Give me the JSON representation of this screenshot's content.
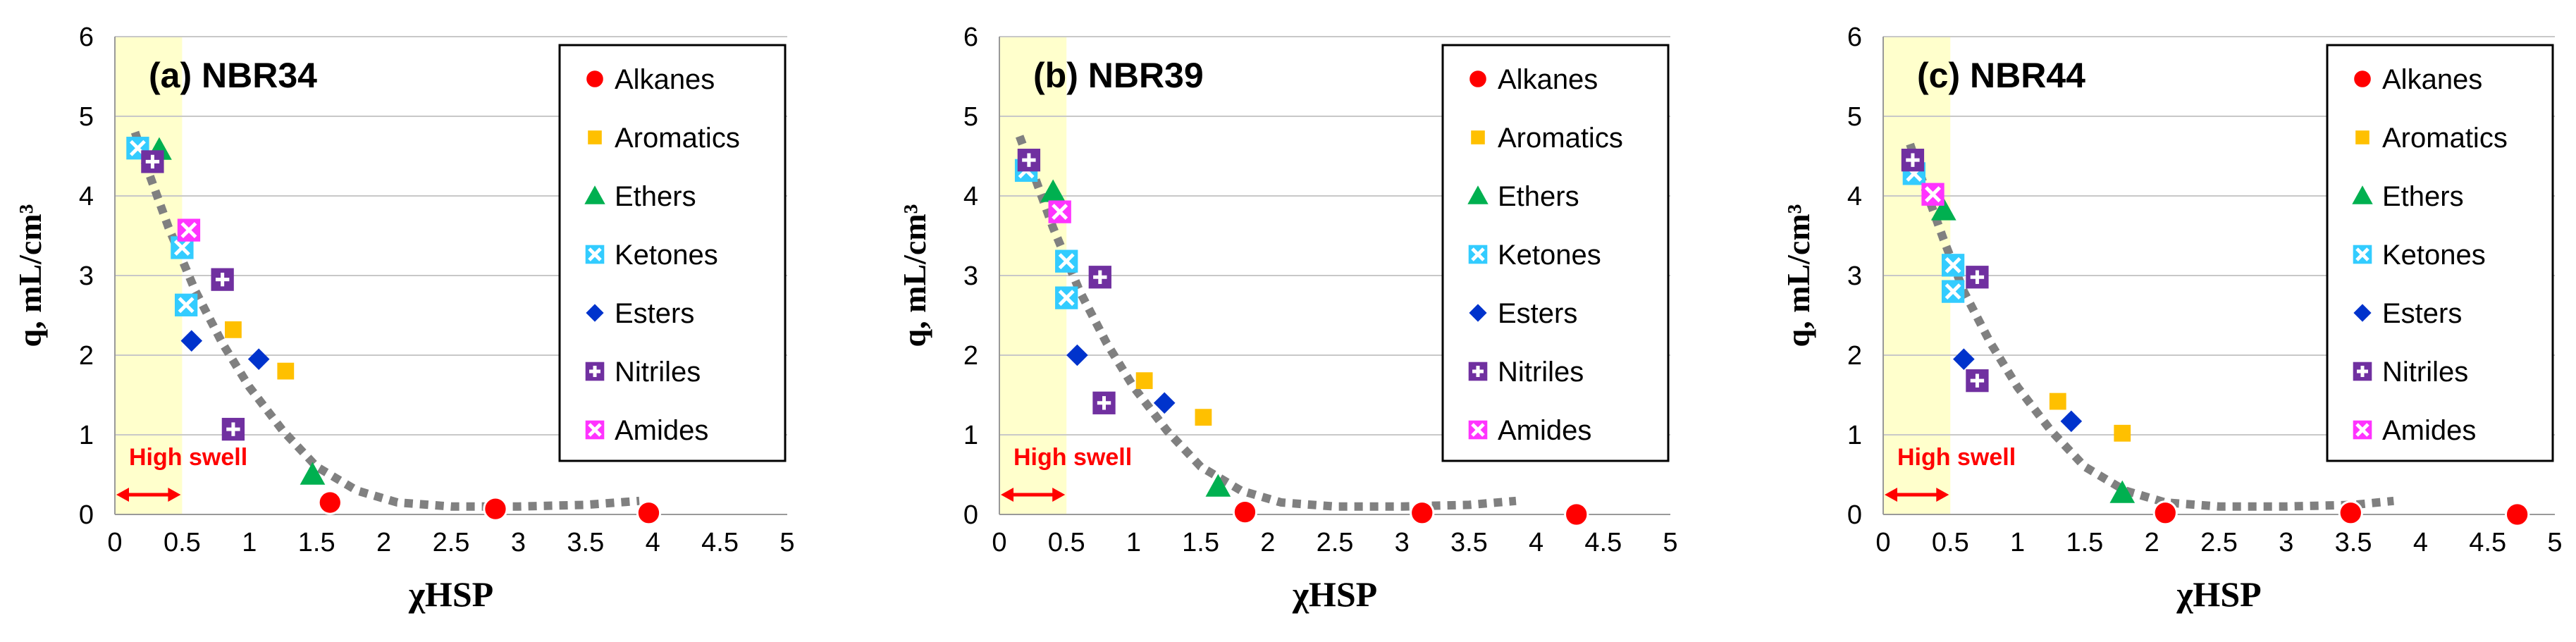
{
  "colors": {
    "Alkanes": "#ff0000",
    "Aromatics": "#ffc000",
    "Ethers": "#00b050",
    "Ketones": "#33ccff",
    "Esters": "#0033cc",
    "Nitriles": "#7030a0",
    "Amides": "#ff33ff",
    "highSwellBand": "#ffffcc",
    "highSwellText": "#ff0000",
    "trend": "#808080"
  },
  "chart_data": [
    {
      "type": "scatter",
      "title": "(a) NBR34",
      "xlabel": "χHSP",
      "ylabel": "q, mL/cm³",
      "xlim": [
        0,
        5
      ],
      "ylim": [
        0,
        6
      ],
      "xticks": [
        "0",
        "0.5",
        "1",
        "1.5",
        "2",
        "2.5",
        "3",
        "3.5",
        "4",
        "4.5",
        "5"
      ],
      "yticks": [
        "0",
        "1",
        "2",
        "3",
        "4",
        "5",
        "6"
      ],
      "grid": true,
      "legend_position": "top-right",
      "annotation": "High swell",
      "high_swell_limit": 0.5,
      "series": [
        {
          "name": "Alkanes",
          "x": [
            1.6,
            2.83,
            3.97
          ],
          "y": [
            0.15,
            0.07,
            0.02
          ]
        },
        {
          "name": "Aromatics",
          "x": [
            0.88,
            1.27
          ],
          "y": [
            2.32,
            1.8
          ]
        },
        {
          "name": "Ethers",
          "x": [
            0.33,
            1.47
          ],
          "y": [
            4.58,
            0.5
          ]
        },
        {
          "name": "Ketones",
          "x": [
            0.17,
            0.5,
            0.53
          ],
          "y": [
            4.6,
            3.35,
            2.63
          ]
        },
        {
          "name": "Esters",
          "x": [
            0.57,
            1.07
          ],
          "y": [
            2.18,
            1.95
          ]
        },
        {
          "name": "Nitriles",
          "x": [
            0.28,
            0.8,
            0.88
          ],
          "y": [
            4.43,
            2.95,
            1.07
          ]
        },
        {
          "name": "Amides",
          "x": [
            0.55
          ],
          "y": [
            3.57
          ]
        }
      ],
      "trend": {
        "x": [
          0.15,
          0.25,
          0.4,
          0.6,
          0.8,
          1,
          1.25,
          1.5,
          1.8,
          2.1,
          2.5,
          3,
          3.5,
          3.9
        ],
        "y": [
          4.8,
          4.3,
          3.6,
          2.8,
          2.15,
          1.6,
          1.05,
          0.6,
          0.3,
          0.15,
          0.1,
          0.1,
          0.12,
          0.17
        ]
      }
    },
    {
      "type": "scatter",
      "title": "(b) NBR39",
      "xlabel": "χHSP",
      "ylabel": "q, mL/cm³",
      "xlim": [
        0,
        5
      ],
      "ylim": [
        0,
        6
      ],
      "xticks": [
        "0",
        "0.5",
        "1",
        "1.5",
        "2",
        "2.5",
        "3",
        "3.5",
        "4",
        "4.5",
        "5"
      ],
      "yticks": [
        "0",
        "1",
        "2",
        "3",
        "4",
        "5",
        "6"
      ],
      "grid": true,
      "legend_position": "top-right",
      "annotation": "High swell",
      "high_swell_limit": 0.5,
      "series": [
        {
          "name": "Alkanes",
          "x": [
            1.83,
            3.15,
            4.3
          ],
          "y": [
            0.03,
            0.02,
            0.0
          ]
        },
        {
          "name": "Aromatics",
          "x": [
            1.08,
            1.52
          ],
          "y": [
            1.68,
            1.22
          ]
        },
        {
          "name": "Ethers",
          "x": [
            0.4,
            1.63
          ],
          "y": [
            4.05,
            0.35
          ]
        },
        {
          "name": "Ketones",
          "x": [
            0.2,
            0.5,
            0.5
          ],
          "y": [
            4.32,
            3.18,
            2.72
          ]
        },
        {
          "name": "Esters",
          "x": [
            0.58,
            1.23
          ],
          "y": [
            2.0,
            1.4
          ]
        },
        {
          "name": "Nitriles",
          "x": [
            0.22,
            0.75,
            0.78
          ],
          "y": [
            4.45,
            2.98,
            1.4
          ]
        },
        {
          "name": "Amides",
          "x": [
            0.45
          ],
          "y": [
            3.8
          ]
        }
      ],
      "trend": {
        "x": [
          0.15,
          0.25,
          0.4,
          0.6,
          0.8,
          1,
          1.25,
          1.5,
          1.8,
          2.1,
          2.5,
          3,
          3.5,
          3.85
        ],
        "y": [
          4.75,
          4.3,
          3.6,
          2.8,
          2.15,
          1.6,
          1.05,
          0.6,
          0.3,
          0.15,
          0.1,
          0.1,
          0.12,
          0.17
        ]
      }
    },
    {
      "type": "scatter",
      "title": "(c) NBR44",
      "xlabel": "χHSP",
      "ylabel": "q, mL/cm³",
      "xlim": [
        0,
        5
      ],
      "ylim": [
        0,
        6
      ],
      "xticks": [
        "0",
        "0.5",
        "1",
        "1.5",
        "2",
        "2.5",
        "3",
        "3.5",
        "4",
        "4.5",
        "5"
      ],
      "yticks": [
        "0",
        "1",
        "2",
        "3",
        "4",
        "5",
        "6"
      ],
      "grid": true,
      "legend_position": "top-right",
      "annotation": "High swell",
      "high_swell_limit": 0.5,
      "series": [
        {
          "name": "Alkanes",
          "x": [
            2.1,
            3.48,
            4.72
          ],
          "y": [
            0.02,
            0.02,
            0.0
          ]
        },
        {
          "name": "Aromatics",
          "x": [
            1.3,
            1.78
          ],
          "y": [
            1.42,
            1.02
          ]
        },
        {
          "name": "Ethers",
          "x": [
            0.45,
            1.78
          ],
          "y": [
            3.82,
            0.27
          ]
        },
        {
          "name": "Ketones",
          "x": [
            0.23,
            0.52,
            0.52
          ],
          "y": [
            4.28,
            3.13,
            2.8
          ]
        },
        {
          "name": "Esters",
          "x": [
            0.6,
            1.4
          ],
          "y": [
            1.95,
            1.17
          ]
        },
        {
          "name": "Nitriles",
          "x": [
            0.22,
            0.7,
            0.7
          ],
          "y": [
            4.45,
            2.98,
            1.68
          ]
        },
        {
          "name": "Amides",
          "x": [
            0.37
          ],
          "y": [
            4.02
          ]
        }
      ],
      "trend": {
        "x": [
          0.2,
          0.3,
          0.45,
          0.6,
          0.8,
          1,
          1.25,
          1.5,
          1.8,
          2.1,
          2.5,
          3,
          3.5,
          3.8
        ],
        "y": [
          4.65,
          4.15,
          3.45,
          2.8,
          2.15,
          1.6,
          1.05,
          0.6,
          0.3,
          0.15,
          0.1,
          0.1,
          0.12,
          0.17
        ]
      }
    }
  ]
}
